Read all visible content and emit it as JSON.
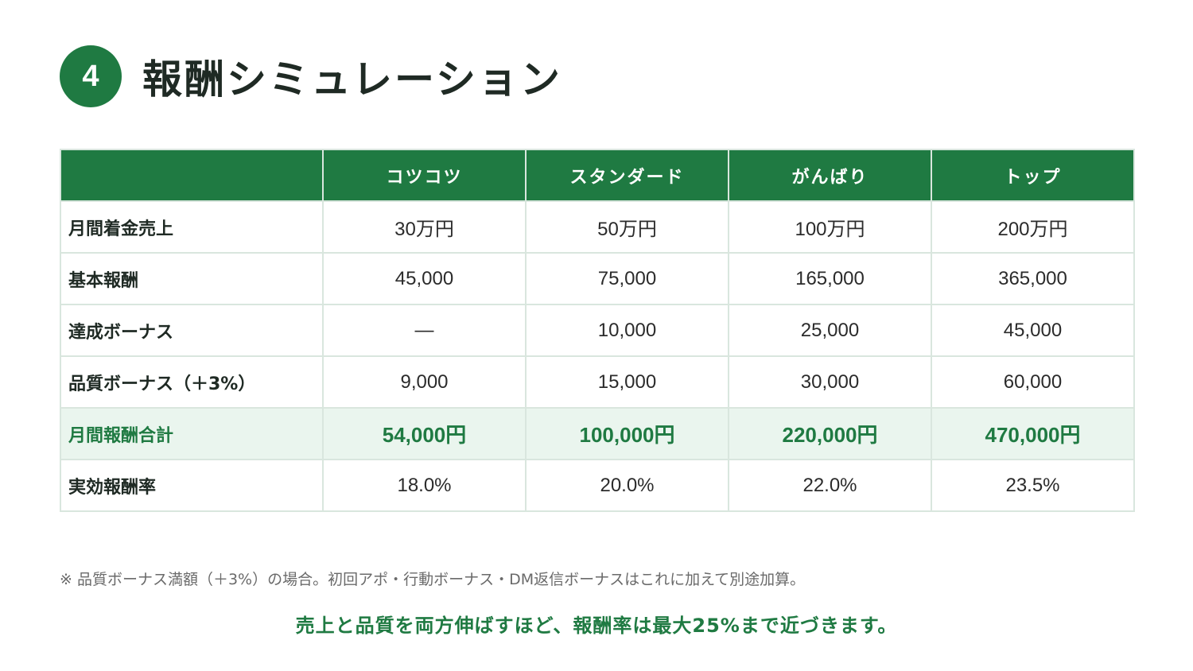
{
  "header": {
    "step_number": "4",
    "title": "報酬シミュレーション"
  },
  "table": {
    "columns": [
      "",
      "コツコツ",
      "スタンダード",
      "がんばり",
      "トップ"
    ],
    "rows": [
      {
        "label": "月間着金売上",
        "values": [
          "30万円",
          "50万円",
          "100万円",
          "200万円"
        ]
      },
      {
        "label": "基本報酬",
        "values": [
          "45,000",
          "75,000",
          "165,000",
          "365,000"
        ]
      },
      {
        "label": "達成ボーナス",
        "values": [
          "—",
          "10,000",
          "25,000",
          "45,000"
        ]
      },
      {
        "label": "品質ボーナス（＋3%）",
        "values": [
          "9,000",
          "15,000",
          "30,000",
          "60,000"
        ]
      },
      {
        "label": "月間報酬合計",
        "values": [
          "54,000円",
          "100,000円",
          "220,000円",
          "470,000円"
        ]
      },
      {
        "label": "実効報酬率",
        "values": [
          "18.0%",
          "20.0%",
          "22.0%",
          "23.5%"
        ]
      }
    ]
  },
  "note": "※ 品質ボーナス満額（＋3%）の場合。初回アポ・行動ボーナス・DM返信ボーナスはこれに加えて別途加算。",
  "conclusion": "売上と品質を両方伸ばすほど、報酬率は最大25%まで近づきます。",
  "colors": {
    "accent": "#1f7a42",
    "total_row_bg": "#eaf5ee",
    "border": "#d9e6de"
  }
}
